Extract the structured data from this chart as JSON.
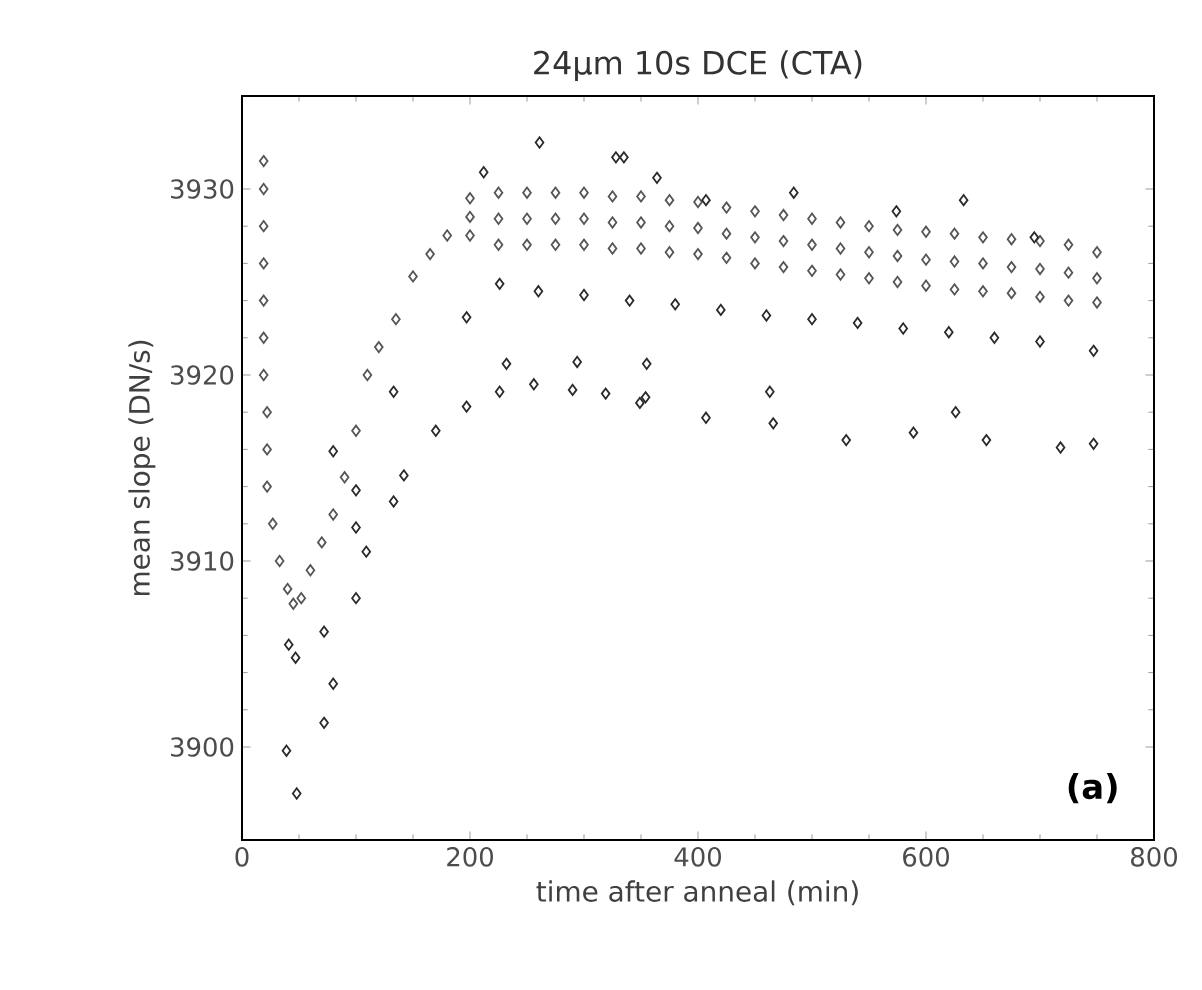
{
  "chart_data": {
    "type": "scatter",
    "title": "24μm 10s DCE (CTA)",
    "xlabel": "time after anneal (min)",
    "ylabel": "mean slope (DN/s)",
    "annotations": [
      "**(a)**"
    ],
    "xlim": [
      0,
      800
    ],
    "ylim": [
      3895,
      3935
    ],
    "xticks": [
      0,
      200,
      400,
      600,
      800
    ],
    "yticks": [
      3900,
      3910,
      3920,
      3930
    ],
    "marker": "diamond",
    "series": [
      {
        "color": "#555555",
        "x": [
          19,
          19,
          19,
          19,
          19,
          19,
          19,
          22,
          22,
          22,
          27,
          33,
          40,
          45,
          52,
          60,
          70,
          80,
          90,
          100,
          110,
          120,
          135,
          150,
          165,
          180,
          200,
          200,
          200,
          225,
          225,
          225,
          250,
          250,
          250,
          275,
          275,
          275,
          300,
          300,
          300,
          325,
          325,
          325,
          350,
          350,
          350,
          375,
          375,
          375,
          400,
          400,
          400,
          425,
          425,
          425,
          450,
          450,
          450,
          475,
          475,
          475,
          500,
          500,
          500,
          525,
          525,
          525,
          550,
          550,
          550,
          575,
          575,
          575,
          600,
          600,
          600,
          625,
          625,
          625,
          650,
          650,
          650,
          675,
          675,
          675,
          700,
          700,
          700,
          725,
          725,
          725,
          750,
          750,
          750
        ],
        "values": [
          3931.5,
          3930,
          3928,
          3926,
          3924,
          3922,
          3920,
          3918,
          3916,
          3914,
          3912,
          3910,
          3908.5,
          3907.7,
          3908,
          3909.5,
          3911,
          3912.5,
          3914.5,
          3917,
          3920,
          3921.5,
          3923,
          3925.3,
          3926.5,
          3927.5,
          3929.5,
          3928.5,
          3927.5,
          3929.8,
          3928.4,
          3927,
          3929.8,
          3928.4,
          3927,
          3929.8,
          3928.4,
          3927,
          3929.8,
          3928.4,
          3927,
          3929.6,
          3928.2,
          3926.8,
          3929.6,
          3928.2,
          3926.8,
          3929.4,
          3928,
          3926.6,
          3929.3,
          3927.9,
          3926.5,
          3929,
          3927.6,
          3926.3,
          3928.8,
          3927.4,
          3926,
          3928.6,
          3927.2,
          3925.8,
          3928.4,
          3927,
          3925.6,
          3928.2,
          3926.8,
          3925.4,
          3928,
          3926.6,
          3925.2,
          3927.8,
          3926.4,
          3925,
          3927.7,
          3926.2,
          3924.8,
          3927.6,
          3926.1,
          3924.6,
          3927.4,
          3926,
          3924.5,
          3927.3,
          3925.8,
          3924.4,
          3927.2,
          3925.7,
          3924.2,
          3927,
          3925.5,
          3924,
          3926.6,
          3925.2,
          3923.9
        ]
      },
      {
        "color": "#2a2a2a",
        "x": [
          39,
          48,
          41,
          47,
          72,
          80,
          72,
          100,
          109,
          100,
          100,
          133,
          142,
          80,
          133,
          170,
          197,
          226,
          256,
          290,
          319,
          354,
          349,
          407,
          466,
          530,
          589,
          653,
          718,
          747,
          232,
          294,
          355,
          463,
          626,
          197,
          226,
          260,
          300,
          340,
          380,
          420,
          460,
          500,
          540,
          580,
          620,
          660,
          700,
          747,
          212,
          261,
          328,
          335,
          364,
          407,
          484,
          574,
          633,
          695
        ],
        "values": [
          3899.8,
          3897.5,
          3905.5,
          3904.8,
          3901.3,
          3903.4,
          3906.2,
          3908,
          3910.5,
          3911.8,
          3913.8,
          3913.2,
          3914.6,
          3915.9,
          3919.1,
          3917,
          3918.3,
          3919.1,
          3919.5,
          3919.2,
          3919,
          3918.8,
          3918.5,
          3917.7,
          3917.4,
          3916.5,
          3916.9,
          3916.5,
          3916.1,
          3916.3,
          3920.6,
          3920.7,
          3920.6,
          3919.1,
          3918,
          3923.1,
          3924.9,
          3924.5,
          3924.3,
          3924,
          3923.8,
          3923.5,
          3923.2,
          3923,
          3922.8,
          3922.5,
          3922.3,
          3922,
          3921.8,
          3921.3,
          3930.9,
          3932.5,
          3931.7,
          3931.7,
          3930.6,
          3929.4,
          3929.8,
          3928.8,
          3929.4,
          3927.4
        ]
      }
    ]
  }
}
